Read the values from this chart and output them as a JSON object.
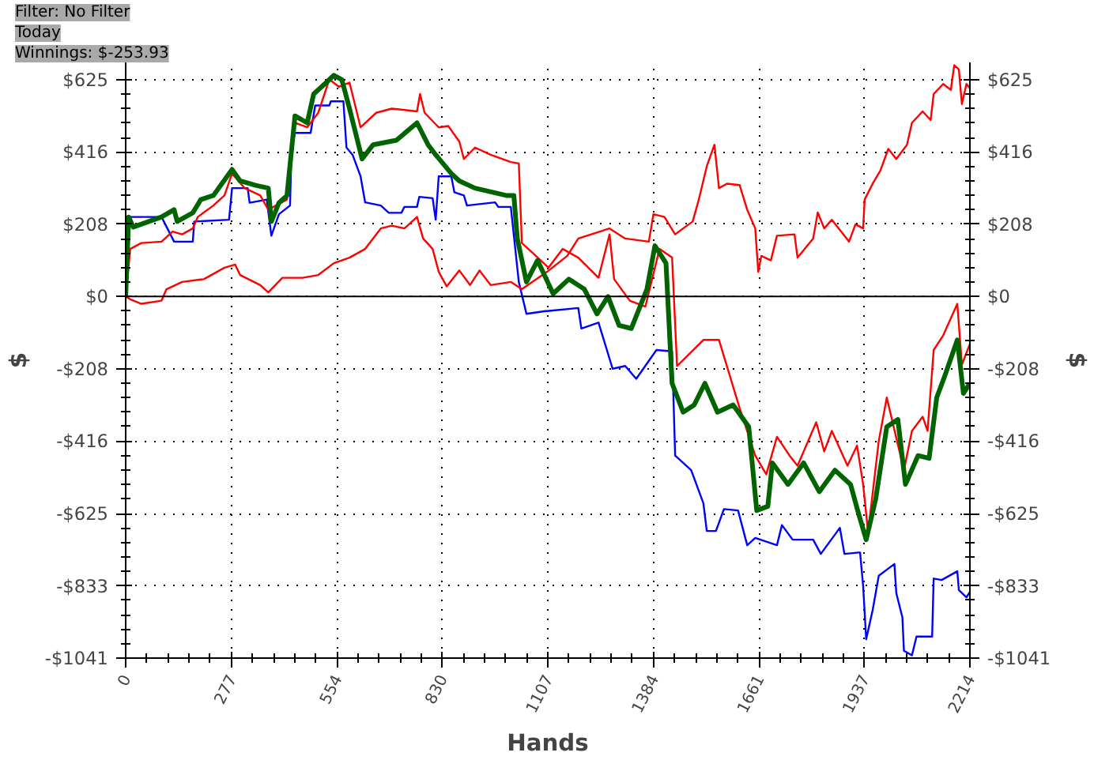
{
  "chart_data": {
    "type": "line",
    "xlabel": "Hands",
    "ylabel": "$",
    "y2label": "$",
    "annotations": [
      "Filter: No Filter",
      "Today",
      "Winnings: $-253.93"
    ],
    "xlim": [
      0,
      2214
    ],
    "xticks": [
      0,
      277,
      554,
      830,
      1107,
      1384,
      1661,
      1937,
      2214
    ],
    "ylim": [
      -1041,
      674
    ],
    "yticks": [
      {
        "value": -1041,
        "label": "-$1041"
      },
      {
        "value": -833,
        "label": "-$833"
      },
      {
        "value": -625,
        "label": "-$625"
      },
      {
        "value": -416,
        "label": "-$416"
      },
      {
        "value": -208,
        "label": "-$208"
      },
      {
        "value": 0,
        "label": "$0"
      },
      {
        "value": 208,
        "label": "$208"
      },
      {
        "value": 416,
        "label": "$416"
      },
      {
        "value": 625,
        "label": "$625"
      }
    ],
    "y2lim": [
      -1041,
      674
    ],
    "y2ticks": [
      {
        "value": -1041,
        "label": "-$1041"
      },
      {
        "value": -833,
        "label": "-$833"
      },
      {
        "value": -625,
        "label": "-$625"
      },
      {
        "value": -416,
        "label": "-$416"
      },
      {
        "value": -208,
        "label": "-$208"
      },
      {
        "value": 0,
        "label": "$0"
      },
      {
        "value": 208,
        "label": "$208"
      },
      {
        "value": 416,
        "label": "$416"
      },
      {
        "value": 625,
        "label": "$625"
      }
    ],
    "grid": true,
    "marker": "none",
    "line_style": "solid",
    "ref_lines": [
      {
        "axis": "y",
        "value": 0,
        "label": null,
        "color": "#000000"
      }
    ],
    "series": [
      {
        "color": "#0000ff",
        "x": [
          0,
          4,
          94,
          127,
          176,
          180,
          271,
          279,
          320,
          325,
          370,
          382,
          402,
          431,
          435,
          444,
          485,
          497,
          534,
          538,
          571,
          579,
          595,
          616,
          628,
          669,
          690,
          723,
          731,
          764,
          770,
          805,
          813,
          821,
          854,
          862,
          887,
          895,
          969,
          977,
          1010,
          1031,
          1051,
          1101,
          1105,
          1187,
          1195,
          1240,
          1277,
          1310,
          1339,
          1392,
          1433,
          1441,
          1483,
          1515,
          1524,
          1548,
          1569,
          1606,
          1630,
          1651,
          1708,
          1721,
          1749,
          1803,
          1823,
          1873,
          1885,
          1922,
          1926,
          1934,
          1942,
          1959,
          1975,
          2016,
          2021,
          2037,
          2041,
          2062,
          2074,
          2115,
          2119,
          2140,
          2181,
          2185,
          2205,
          2214
        ],
        "values": [
          0,
          229,
          229,
          158,
          158,
          216,
          221,
          312,
          312,
          270,
          279,
          175,
          237,
          262,
          429,
          471,
          471,
          550,
          550,
          562,
          562,
          429,
          408,
          346,
          271,
          262,
          241,
          241,
          258,
          258,
          287,
          283,
          221,
          346,
          346,
          300,
          291,
          262,
          271,
          258,
          258,
          42,
          -50,
          -42,
          -42,
          -33,
          -92,
          -75,
          -208,
          -200,
          -237,
          -154,
          -158,
          -458,
          -500,
          -595,
          -675,
          -675,
          -612,
          -616,
          -716,
          -695,
          -716,
          -658,
          -700,
          -700,
          -741,
          -666,
          -741,
          -737,
          -737,
          -833,
          -987,
          -903,
          -804,
          -770,
          -854,
          -924,
          -1020,
          -1033,
          -979,
          -979,
          -812,
          -816,
          -791,
          -845,
          -866,
          -850
        ]
      },
      {
        "color": "#ff0000",
        "x": [
          0,
          12,
          41,
          94,
          123,
          148,
          176,
          189,
          230,
          259,
          279,
          312,
          353,
          374,
          423,
          444,
          476,
          505,
          534,
          559,
          587,
          616,
          657,
          698,
          764,
          772,
          784,
          821,
          846,
          875,
          887,
          916,
          957,
          1010,
          1031,
          1039,
          1068,
          1109,
          1146,
          1187,
          1240,
          1269,
          1281,
          1322,
          1363,
          1400,
          1433,
          1446,
          1515,
          1556,
          1610,
          1651,
          1680,
          1708,
          1741,
          1762,
          1811,
          1832,
          1852,
          1893,
          1918,
          1934,
          1947,
          1975,
          1996,
          2041,
          2062,
          2090,
          2103,
          2119,
          2144,
          2181,
          2193,
          2214
        ],
        "values": [
          0,
          137,
          154,
          158,
          187,
          179,
          196,
          229,
          262,
          291,
          354,
          312,
          291,
          250,
          279,
          500,
          487,
          529,
          625,
          604,
          616,
          487,
          529,
          541,
          533,
          583,
          529,
          487,
          491,
          446,
          396,
          429,
          408,
          387,
          383,
          154,
          125,
          83,
          137,
          112,
          54,
          179,
          50,
          -12,
          -29,
          137,
          112,
          -200,
          -125,
          -125,
          -321,
          -458,
          -512,
          -404,
          -458,
          -487,
          -362,
          -446,
          -387,
          -487,
          -429,
          -541,
          -679,
          -416,
          -291,
          -500,
          -387,
          -346,
          -387,
          -154,
          -112,
          -21,
          -196,
          -137
        ]
      },
      {
        "color": "#ff0000",
        "x": [
          0,
          12,
          41,
          94,
          107,
          148,
          205,
          259,
          287,
          300,
          353,
          374,
          411,
          464,
          505,
          546,
          587,
          628,
          669,
          698,
          731,
          764,
          780,
          805,
          821,
          842,
          875,
          903,
          928,
          957,
          1010,
          1039,
          1105,
          1158,
          1187,
          1269,
          1310,
          1372,
          1384,
          1413,
          1441,
          1462,
          1487,
          1503,
          1524,
          1544,
          1556,
          1577,
          1610,
          1630,
          1651,
          1659,
          1667,
          1692,
          1708,
          1754,
          1762,
          1803,
          1815,
          1832,
          1852,
          1897,
          1914,
          1934,
          1938,
          1959,
          1979,
          2000,
          2021,
          2049,
          2062,
          2090,
          2111,
          2119,
          2144,
          2164,
          2173,
          2185,
          2193,
          2205,
          2214
        ],
        "values": [
          0,
          -8,
          -21,
          -12,
          21,
          42,
          50,
          83,
          92,
          62,
          33,
          12,
          54,
          54,
          62,
          96,
          112,
          137,
          196,
          204,
          196,
          229,
          167,
          137,
          71,
          29,
          75,
          33,
          75,
          33,
          42,
          21,
          71,
          117,
          167,
          196,
          167,
          158,
          237,
          229,
          179,
          196,
          216,
          279,
          375,
          437,
          312,
          325,
          321,
          250,
          196,
          71,
          117,
          104,
          175,
          179,
          112,
          167,
          242,
          196,
          221,
          158,
          208,
          196,
          279,
          325,
          362,
          425,
          396,
          437,
          500,
          533,
          508,
          583,
          612,
          595,
          666,
          654,
          554,
          612,
          600
        ]
      },
      {
        "color": "#006400",
        "x": [
          0,
          8,
          20,
          94,
          127,
          135,
          176,
          197,
          230,
          279,
          300,
          341,
          374,
          382,
          402,
          423,
          444,
          476,
          493,
          526,
          546,
          567,
          587,
          620,
          649,
          710,
          764,
          793,
          813,
          854,
          875,
          916,
          998,
          1018,
          1027,
          1051,
          1080,
          1121,
          1162,
          1203,
          1236,
          1265,
          1294,
          1326,
          1367,
          1388,
          1417,
          1433,
          1462,
          1491,
          1519,
          1552,
          1593,
          1634,
          1655,
          1684,
          1696,
          1737,
          1778,
          1819,
          1860,
          1901,
          1922,
          1942,
          1967,
          1996,
          2025,
          2045,
          2078,
          2107,
          2127,
          2148,
          2181,
          2197,
          2214
        ],
        "values": [
          0,
          229,
          200,
          229,
          250,
          216,
          241,
          279,
          291,
          366,
          333,
          320,
          312,
          216,
          270,
          291,
          520,
          500,
          583,
          616,
          637,
          624,
          541,
          396,
          437,
          450,
          500,
          437,
          408,
          354,
          333,
          312,
          291,
          291,
          167,
          42,
          104,
          8,
          50,
          21,
          -50,
          0,
          -83,
          -92,
          21,
          146,
          96,
          -250,
          -333,
          -312,
          -250,
          -333,
          -312,
          -375,
          -616,
          -604,
          -479,
          -541,
          -479,
          -562,
          -500,
          -541,
          -625,
          -700,
          -583,
          -375,
          -354,
          -541,
          -458,
          -466,
          -291,
          -229,
          -125,
          -279,
          -250
        ]
      }
    ]
  }
}
